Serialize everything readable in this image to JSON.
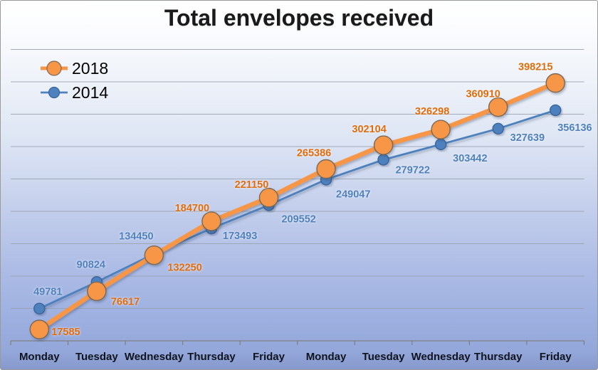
{
  "window": {
    "title": "Total envelopes received"
  },
  "chart_data": {
    "type": "line",
    "title": "Total envelopes received",
    "categories": [
      "Monday",
      "Tuesday",
      "Wednesday",
      "Thursday",
      "Friday",
      "Monday",
      "Tuesday",
      "Wednesday",
      "Thursday",
      "Friday"
    ],
    "series": [
      {
        "name": "2018",
        "values": [
          17585,
          76617,
          132250,
          184700,
          221150,
          265386,
          302104,
          326298,
          360910,
          398215
        ],
        "line_color": "#F79646",
        "line_width": 6.5,
        "marker_fill": "#F79646",
        "marker_stroke": "#7d6853",
        "marker_radius": 13,
        "label_color": "#E36C0A",
        "label_offsets": [
          [
            17,
            8,
            "start"
          ],
          [
            20,
            19,
            "start"
          ],
          [
            19,
            22,
            "start"
          ],
          [
            -27,
            -14,
            "middle"
          ],
          [
            -24,
            -14,
            "middle"
          ],
          [
            -17,
            -18,
            "middle"
          ],
          [
            -20,
            -18,
            "middle"
          ],
          [
            -12,
            -21,
            "middle"
          ],
          [
            -21,
            -14,
            "middle"
          ],
          [
            -28,
            -18,
            "middle"
          ]
        ]
      },
      {
        "name": "2014",
        "values": [
          49781,
          90824,
          134450,
          173493,
          209552,
          249047,
          279722,
          303442,
          327639,
          356136
        ],
        "line_color": "#4E81BD",
        "line_width": 2.8,
        "marker_fill": "#4E81BD",
        "marker_stroke": "#39639c",
        "marker_radius": 7.5,
        "label_color": "#4F81BD",
        "label_offsets": [
          [
            12,
            -19,
            "middle"
          ],
          [
            -8,
            -20,
            "middle"
          ],
          [
            -25,
            -20,
            "middle"
          ],
          [
            16,
            15,
            "start"
          ],
          [
            18,
            24,
            "start"
          ],
          [
            14,
            25,
            "start"
          ],
          [
            17,
            19,
            "start"
          ],
          [
            17,
            24,
            "start"
          ],
          [
            17,
            17,
            "start"
          ],
          [
            3,
            29,
            "start"
          ]
        ]
      }
    ],
    "xlabel": "",
    "ylabel": "",
    "ylim": [
      0,
      450000
    ],
    "y_gridline_step": 50000,
    "grid": true,
    "y_axis_tick_labels_visible": false,
    "legend_position": "top-left",
    "legend": [
      "2018",
      "2014"
    ],
    "background": "gradient-white-to-blue"
  },
  "colors": {
    "title_text": "#1a1a1a",
    "x_label_text": "#10141f",
    "gridline": "#99a1ae",
    "axis": "#7f7f7f",
    "series_2018": "#F79646",
    "series_2018_label": "#E36C0A",
    "series_2014": "#4E81BD",
    "series_2014_label": "#4F81BD",
    "border": "#9a9a9a"
  }
}
